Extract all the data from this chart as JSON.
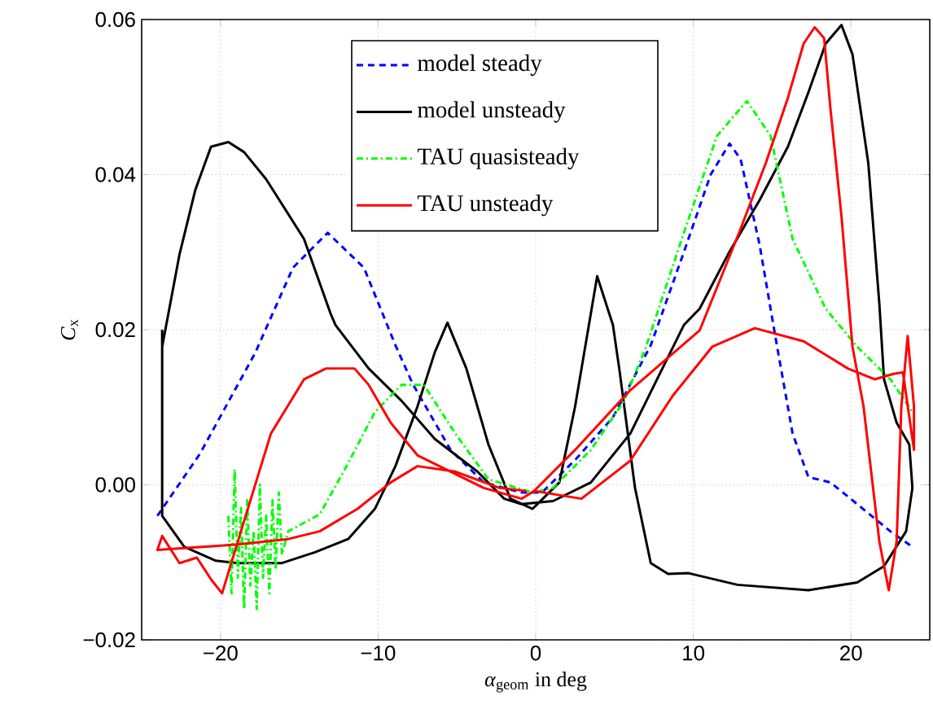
{
  "chart_data": {
    "type": "line",
    "xlabel": "*α*$_{geom}$ in deg",
    "ylabel": "*C*$_{x}$",
    "xlim": [
      -25,
      25
    ],
    "ylim": [
      -0.02,
      0.06
    ],
    "xticks": [
      {
        "value": -20,
        "label": "−20"
      },
      {
        "value": -10,
        "label": "−10"
      },
      0,
      10,
      20
    ],
    "yticks": [
      {
        "value": -0.02,
        "label": "−0.02"
      },
      {
        "value": 0,
        "label": "0.00"
      },
      0.02,
      0.04,
      0.06
    ],
    "grid": true,
    "legend": "top",
    "series": [
      {
        "name": "model steady",
        "color": "#0000ff",
        "line_style": "dashed",
        "x": [
          -24.0,
          -21.3,
          -17.8,
          -15.4,
          -13.2,
          -10.9,
          -8.9,
          -7.8,
          -5.4,
          -3.3,
          -0.9,
          0.4,
          2.5,
          4.9,
          7.3,
          9.4,
          11.1,
          12.3,
          13.0,
          14.2,
          15.3,
          16.3,
          17.3,
          18.7,
          20.4,
          22.5,
          23.9
        ],
        "values": [
          -0.004,
          0.004,
          0.017,
          0.028,
          0.0325,
          0.028,
          0.018,
          0.013,
          0.0045,
          0.0003,
          -0.001,
          -0.001,
          0.0032,
          0.0087,
          0.018,
          0.03,
          0.04,
          0.044,
          0.042,
          0.031,
          0.018,
          0.0066,
          0.001,
          0.0003,
          -0.0025,
          -0.006,
          -0.008
        ]
      },
      {
        "name": "model unsteady",
        "color": "#000000",
        "line_style": "solid",
        "x": [
          -23.7,
          -23.7,
          -22.3,
          -20.3,
          -18.9,
          -16.1,
          -14.0,
          -11.9,
          -10.2,
          -8.9,
          -7.5,
          -6.4,
          -5.6,
          -4.4,
          -3.0,
          -1.6,
          -0.2,
          0.1,
          1.5,
          2.5,
          3.9,
          4.9,
          5.3,
          6.3,
          7.3,
          8.4,
          9.7,
          12.8,
          17.3,
          20.4,
          22.1,
          23.5,
          23.9,
          23.7,
          22.9,
          22.1,
          21.8,
          21.1,
          20.1,
          19.4,
          18.4,
          17.3,
          16.0,
          14.2,
          12.2,
          10.4,
          9.4,
          7.7,
          6.0,
          3.5,
          1.1,
          -0.9,
          -2.0,
          -3.7,
          -6.4,
          -8.5,
          -10.6,
          -12.7,
          -13.0,
          -14.7,
          -17.1,
          -18.5,
          -19.5,
          -20.6,
          -21.6,
          -22.6,
          -23.7,
          -23.7
        ],
        "values": [
          0.02,
          -0.004,
          -0.008,
          -0.0098,
          -0.0101,
          -0.0101,
          -0.0087,
          -0.007,
          -0.0031,
          0.0024,
          0.0101,
          0.0171,
          0.0209,
          0.015,
          0.0052,
          -0.0018,
          -0.0031,
          -0.0025,
          0.0003,
          0.0101,
          0.0269,
          0.0206,
          0.015,
          -0.0004,
          -0.0101,
          -0.0115,
          -0.0114,
          -0.0129,
          -0.0136,
          -0.0126,
          -0.0105,
          -0.006,
          -0.0004,
          0.0052,
          0.008,
          0.0136,
          0.0234,
          0.0415,
          0.0555,
          0.0593,
          0.0569,
          0.0506,
          0.0436,
          0.0367,
          0.0297,
          0.0227,
          0.0206,
          0.0136,
          0.0066,
          0.0003,
          -0.0021,
          -0.0025,
          -0.0018,
          0.0017,
          0.0059,
          0.0108,
          0.015,
          0.0206,
          0.022,
          0.0317,
          0.0394,
          0.0429,
          0.0442,
          0.0436,
          0.038,
          0.0297,
          0.0178,
          0.004
        ]
      },
      {
        "name": "TAU quasisteady",
        "color": "#00ff00",
        "line_style": "dashdot",
        "x": [
          -19.5,
          -19.3,
          -19.1,
          -18.9,
          -18.7,
          -18.5,
          -18.3,
          -18.1,
          -17.9,
          -17.7,
          -17.5,
          -17.3,
          -17.1,
          -16.9,
          -16.7,
          -16.5,
          -16.3,
          -16.1,
          -15.7,
          -13.7,
          -12.0,
          -10.2,
          -8.5,
          -7.1,
          -5.1,
          -3.0,
          -0.2,
          1.1,
          3.5,
          5.6,
          7.0,
          9.4,
          11.5,
          13.4,
          14.9,
          16.3,
          18.4,
          20.4,
          22.5,
          23.9
        ],
        "values": [
          -0.004,
          -0.014,
          0.002,
          -0.012,
          -0.003,
          -0.016,
          -0.002,
          -0.013,
          -0.006,
          -0.016,
          0.0,
          -0.012,
          -0.004,
          -0.014,
          -0.002,
          -0.011,
          -0.001,
          -0.009,
          -0.006,
          -0.0038,
          0.0024,
          0.0094,
          0.0129,
          0.0129,
          0.0066,
          0.0007,
          -0.001,
          -0.0004,
          0.0045,
          0.0108,
          0.0178,
          0.0325,
          0.045,
          0.0495,
          0.045,
          0.0317,
          0.0227,
          0.0178,
          0.0136,
          0.0094
        ]
      },
      {
        "name": "TAU unsteady",
        "color": "#ff0000",
        "line_style": "solid",
        "x": [
          -0.2,
          2.5,
          6.0,
          10.4,
          12.9,
          14.6,
          16.0,
          17.0,
          17.7,
          18.3,
          18.7,
          19.4,
          20.1,
          20.8,
          21.8,
          22.4,
          22.9,
          23.2,
          23.6,
          24.0,
          24.0,
          23.3,
          22.7,
          21.5,
          19.8,
          17.0,
          13.9,
          11.2,
          8.7,
          6.0,
          2.9,
          -0.1,
          -0.9,
          -3.3,
          -5.4,
          -7.5,
          -9.2,
          -10.6,
          -11.5,
          -13.3,
          -14.7,
          -16.8,
          -18.4,
          -19.9,
          -20.6,
          -21.5,
          -22.6,
          -23.7,
          -24.0,
          -18.9,
          -15.7,
          -13.7,
          -11.3,
          -9.2,
          -7.5,
          -5.1,
          -2.3,
          -0.6
        ],
        "values": [
          -0.001,
          0.0045,
          0.0122,
          0.0199,
          0.0325,
          0.0415,
          0.0499,
          0.0569,
          0.059,
          0.0576,
          0.0485,
          0.0346,
          0.0178,
          0.0101,
          -0.0073,
          -0.0136,
          -0.0073,
          0.0101,
          0.0192,
          0.0101,
          0.0045,
          0.0145,
          0.0143,
          0.0136,
          0.015,
          0.0185,
          0.0202,
          0.0178,
          0.0115,
          0.0031,
          -0.0018,
          -0.0008,
          -0.0018,
          -0.0004,
          0.0017,
          0.0038,
          0.008,
          0.0129,
          0.015,
          0.015,
          0.0136,
          0.0066,
          -0.004,
          -0.014,
          -0.0122,
          -0.0094,
          -0.0101,
          -0.0066,
          -0.0084,
          -0.0077,
          -0.007,
          -0.006,
          -0.0031,
          0.0003,
          0.0024,
          0.0017,
          -0.0004,
          -0.0008
        ]
      }
    ]
  }
}
